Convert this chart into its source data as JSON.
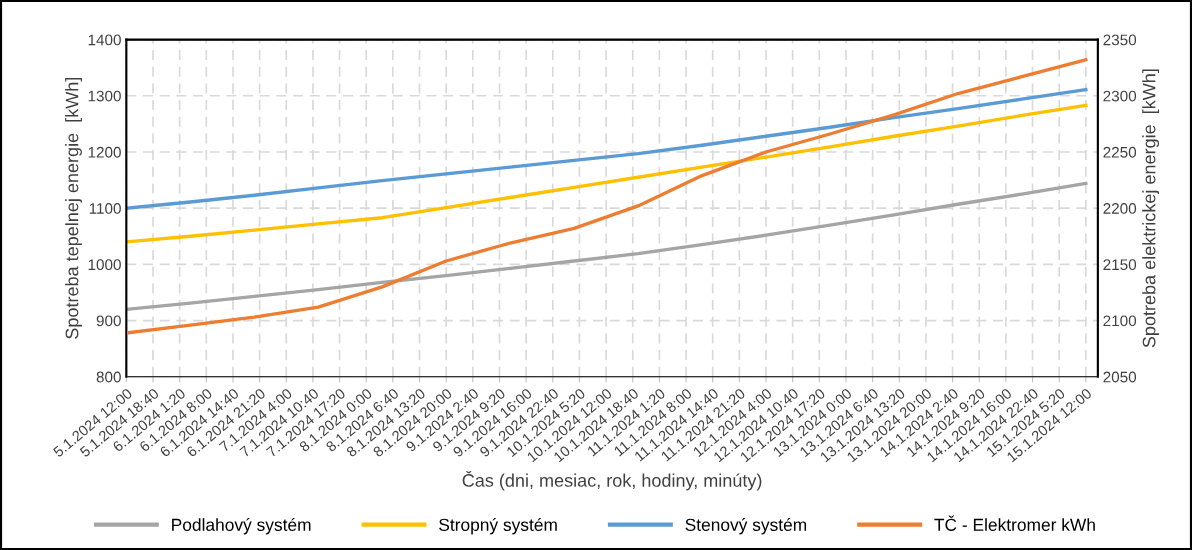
{
  "chart_data": {
    "type": "line",
    "xlabel": "Čas (dni, mesiac, rok, hodiny, minúty)",
    "ylabel": "Spotreba tepelnej energie  [kWh]",
    "y2label": "Spotreba elektrickej energie  [kWh]",
    "x": [
      "2024-01-05T12:00",
      "2024-01-06T04:00",
      "2024-01-06T20:00",
      "2024-01-07T12:00",
      "2024-01-08T04:00",
      "2024-01-08T20:00",
      "2024-01-09T12:00",
      "2024-01-10T04:00",
      "2024-01-10T20:00",
      "2024-01-11T12:00",
      "2024-01-12T04:00",
      "2024-01-12T20:00",
      "2024-01-13T12:00",
      "2024-01-14T04:00",
      "2024-01-14T20:00",
      "2024-01-15T12:00"
    ],
    "series": [
      {
        "name": "Podlahový systém",
        "color": "#a5a5a5",
        "values": [
          920,
          931,
          943,
          955,
          968,
          980,
          993,
          1006,
          1019,
          1035,
          1052,
          1070,
          1088,
          1107,
          1125,
          1144
        ]
      },
      {
        "name": "Stropný systém",
        "color": "#ffc000",
        "values": [
          1040,
          1050,
          1061,
          1072,
          1083,
          1101,
          1119,
          1137,
          1155,
          1173,
          1191,
          1209,
          1228,
          1246,
          1265,
          1283
        ]
      },
      {
        "name": "Stenový systém",
        "color": "#5b9bd5",
        "values": [
          1100,
          1111,
          1123,
          1136,
          1149,
          1161,
          1173,
          1185,
          1197,
          1212,
          1228,
          1244,
          1261,
          1277,
          1294,
          1311
        ]
      },
      {
        "name": "TČ - Elektromer kWh",
        "color": "#ed7d31",
        "axis": "y2",
        "values": [
          2089,
          2096,
          2103,
          2112,
          2130,
          2153,
          2169,
          2182,
          2202,
          2229,
          2250,
          2266,
          2283,
          2302,
          2317,
          2332
        ]
      }
    ],
    "xlim": [
      "2024-01-05T12:00",
      "2024-01-15T15:00"
    ],
    "xticks": [
      {
        "value": "2024-01-05T12:00",
        "label": "5.1.2024 12:00"
      },
      {
        "value": "2024-01-05T18:40",
        "label": "5.1.2024 18:40"
      },
      {
        "value": "2024-01-06T01:20",
        "label": "6.1.2024 1:20"
      },
      {
        "value": "2024-01-06T08:00",
        "label": "6.1.2024 8:00"
      },
      {
        "value": "2024-01-06T14:40",
        "label": "6.1.2024 14:40"
      },
      {
        "value": "2024-01-06T21:20",
        "label": "6.1.2024 21:20"
      },
      {
        "value": "2024-01-07T04:00",
        "label": "7.1.2024 4:00"
      },
      {
        "value": "2024-01-07T10:40",
        "label": "7.1.2024 10:40"
      },
      {
        "value": "2024-01-07T17:20",
        "label": "7.1.2024 17:20"
      },
      {
        "value": "2024-01-08T00:00",
        "label": "8.1.2024 0:00"
      },
      {
        "value": "2024-01-08T06:40",
        "label": "8.1.2024 6:40"
      },
      {
        "value": "2024-01-08T13:20",
        "label": "8.1.2024 13:20"
      },
      {
        "value": "2024-01-08T20:00",
        "label": "8.1.2024 20:00"
      },
      {
        "value": "2024-01-09T02:40",
        "label": "9.1.2024 2:40"
      },
      {
        "value": "2024-01-09T09:20",
        "label": "9.1.2024 9:20"
      },
      {
        "value": "2024-01-09T16:00",
        "label": "9.1.2024 16:00"
      },
      {
        "value": "2024-01-09T22:40",
        "label": "9.1.2024 22:40"
      },
      {
        "value": "2024-01-10T05:20",
        "label": "10.1.2024 5:20"
      },
      {
        "value": "2024-01-10T12:00",
        "label": "10.1.2024 12:00"
      },
      {
        "value": "2024-01-10T18:40",
        "label": "10.1.2024 18:40"
      },
      {
        "value": "2024-01-11T01:20",
        "label": "11.1.2024 1:20"
      },
      {
        "value": "2024-01-11T08:00",
        "label": "11.1.2024 8:00"
      },
      {
        "value": "2024-01-11T14:40",
        "label": "11.1.2024 14:40"
      },
      {
        "value": "2024-01-11T21:20",
        "label": "11.1.2024 21:20"
      },
      {
        "value": "2024-01-12T04:00",
        "label": "12.1.2024 4:00"
      },
      {
        "value": "2024-01-12T10:40",
        "label": "12.1.2024 10:40"
      },
      {
        "value": "2024-01-12T17:20",
        "label": "12.1.2024 17:20"
      },
      {
        "value": "2024-01-13T00:00",
        "label": "13.1.2024 0:00"
      },
      {
        "value": "2024-01-13T06:40",
        "label": "13.1.2024 6:40"
      },
      {
        "value": "2024-01-13T13:20",
        "label": "13.1.2024 13:20"
      },
      {
        "value": "2024-01-13T20:00",
        "label": "13.1.2024 20:00"
      },
      {
        "value": "2024-01-14T02:40",
        "label": "14.1.2024 2:40"
      },
      {
        "value": "2024-01-14T09:20",
        "label": "14.1.2024 9:20"
      },
      {
        "value": "2024-01-14T16:00",
        "label": "14.1.2024 16:00"
      },
      {
        "value": "2024-01-14T22:40",
        "label": "14.1.2024 22:40"
      },
      {
        "value": "2024-01-15T05:20",
        "label": "15.1.2024 5:20"
      },
      {
        "value": "2024-01-15T12:00",
        "label": "15.1.2024 12:00"
      }
    ],
    "ylim": [
      800,
      1400
    ],
    "yticks": [
      800,
      900,
      1000,
      1100,
      1200,
      1300,
      1400
    ],
    "y2lim": [
      2050,
      2350
    ],
    "y2ticks": [
      2050,
      2100,
      2150,
      2200,
      2250,
      2300,
      2350
    ],
    "grid": true,
    "legend": "bottom",
    "marker": "none",
    "line_style": "solid"
  }
}
